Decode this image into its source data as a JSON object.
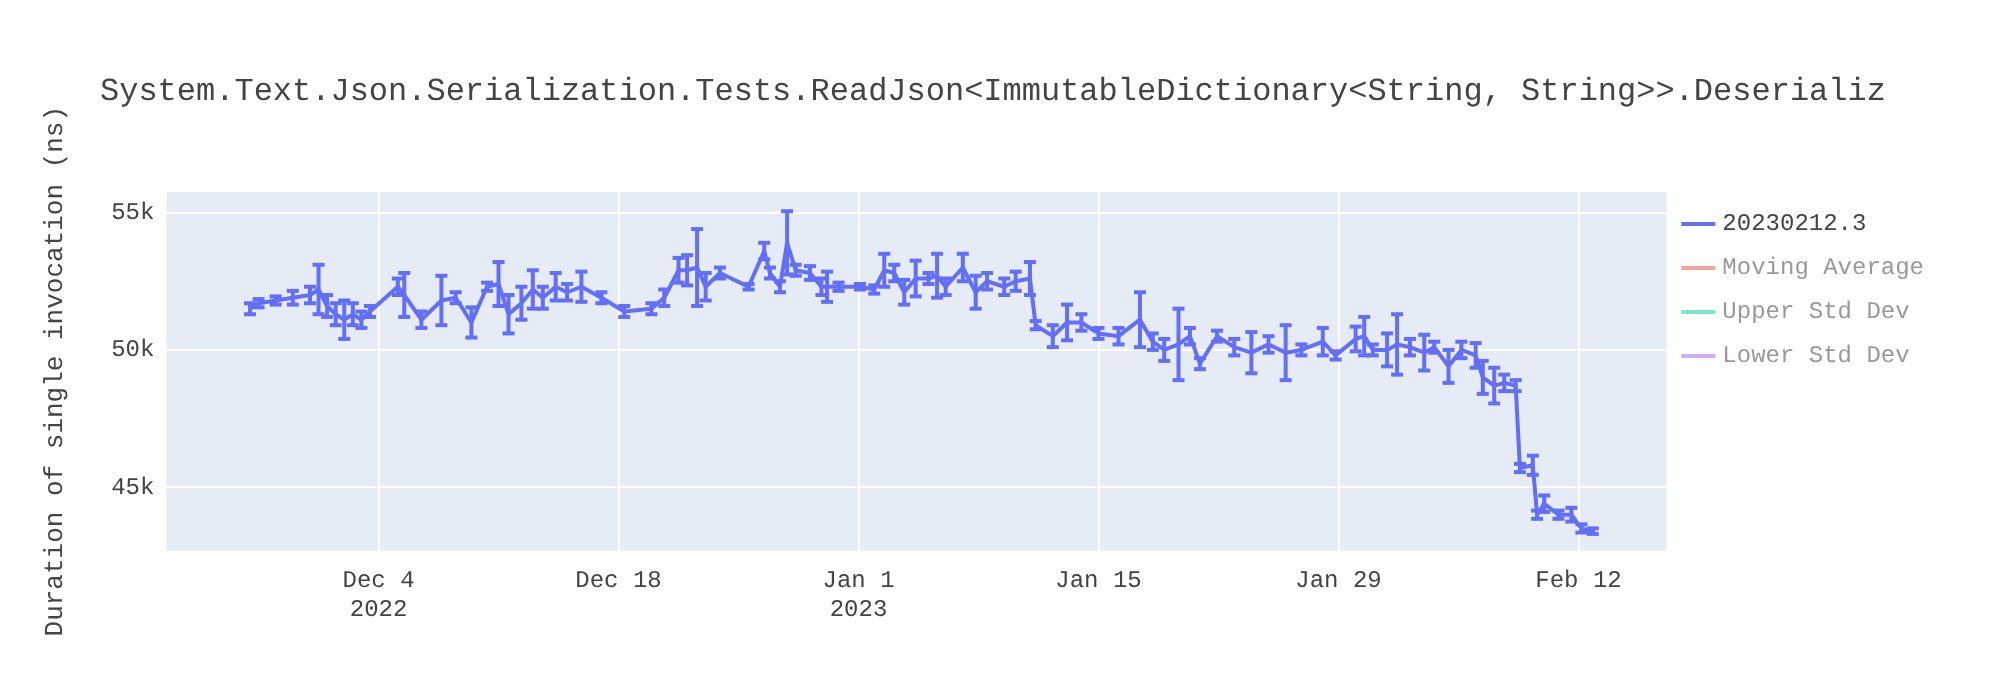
{
  "chart_data": {
    "type": "line",
    "title": "System.Text.Json.Serialization.Tests.ReadJson<ImmutableDictionary<String, String>>.Deserializ",
    "ylabel": "Duration of single invocation (ns)",
    "xlim": [
      "2022-11-21T15:00",
      "2023-02-17T03:00"
    ],
    "xticks": [
      {
        "value": "2022-12-04",
        "label": "Dec 4\n2022"
      },
      {
        "value": "2022-12-18",
        "label": "Dec 18"
      },
      {
        "value": "2023-01-01",
        "label": "Jan 1\n2023"
      },
      {
        "value": "2023-01-15",
        "label": "Jan 15"
      },
      {
        "value": "2023-01-29",
        "label": "Jan 29"
      },
      {
        "value": "2023-02-12",
        "label": "Feb 12"
      }
    ],
    "ylim": [
      42700,
      55750
    ],
    "yticks": [
      {
        "value": 45000,
        "label": "45k"
      },
      {
        "value": 50000,
        "label": "50k"
      },
      {
        "value": 55000,
        "label": "55k"
      }
    ],
    "grid": true,
    "legend": "top right",
    "marker": "none",
    "line_style": "solid",
    "series": [
      {
        "name": "20230212.3",
        "color": "#636efa",
        "x": [
          "2022-11-26T12:00",
          "2022-11-27T00:00",
          "2022-11-28T00:00",
          "2022-11-29T00:00",
          "2022-11-30T00:00",
          "2022-11-30T12:00",
          "2022-12-01T00:00",
          "2022-12-01T12:00",
          "2022-12-02T00:00",
          "2022-12-02T12:00",
          "2022-12-03T00:00",
          "2022-12-03T12:00",
          "2022-12-05T03:00",
          "2022-12-05T12:00",
          "2022-12-06T12:00",
          "2022-12-07T16:00",
          "2022-12-08T12:00",
          "2022-12-09T10:00",
          "2022-12-10T08:00",
          "2022-12-11T00:00",
          "2022-12-11T14:00",
          "2022-12-12T08:00",
          "2022-12-13T00:00",
          "2022-12-13T14:00",
          "2022-12-14T08:00",
          "2022-12-15T00:00",
          "2022-12-15T20:00",
          "2022-12-17T00:00",
          "2022-12-18T08:00",
          "2022-12-19T22:00",
          "2022-12-20T16:00",
          "2022-12-21T12:00",
          "2022-12-22T00:00",
          "2022-12-22T14:00",
          "2022-12-23T02:00",
          "2022-12-23T22:00",
          "2022-12-25T14:00",
          "2022-12-26T12:00",
          "2022-12-26T20:00",
          "2022-12-27T10:00",
          "2022-12-27T20:00",
          "2022-12-28T08:00",
          "2022-12-29T04:00",
          "2022-12-29T20:00",
          "2022-12-30T04:00",
          "2022-12-30T20:00",
          "2023-01-01T02:00",
          "2023-01-01T22:00",
          "2023-01-02T12:00",
          "2023-01-03T02:00",
          "2023-01-03T16:00",
          "2023-01-04T08:00",
          "2023-01-05T02:00",
          "2023-01-05T14:00",
          "2023-01-06T02:00",
          "2023-01-07T02:00",
          "2023-01-07T20:00",
          "2023-01-08T12:00",
          "2023-01-09T12:00",
          "2023-01-10T04:00",
          "2023-01-11T00:00",
          "2023-01-11T08:00",
          "2023-01-12T08:00",
          "2023-01-13T04:00",
          "2023-01-14T00:00",
          "2023-01-15T00:00",
          "2023-01-16T04:00",
          "2023-01-17T10:00",
          "2023-01-18T04:00",
          "2023-01-18T20:00",
          "2023-01-19T16:00",
          "2023-01-20T08:00",
          "2023-01-20T22:00",
          "2023-01-21T22:00",
          "2023-01-22T22:00",
          "2023-01-23T22:00",
          "2023-01-24T22:00",
          "2023-01-25T22:00",
          "2023-01-26T20:00",
          "2023-01-28T02:00",
          "2023-01-28T20:00",
          "2023-01-30T00:00",
          "2023-01-30T12:00",
          "2023-01-31T00:00",
          "2023-01-31T20:00",
          "2023-02-01T10:00",
          "2023-02-02T04:00",
          "2023-02-03T00:00",
          "2023-02-03T14:00",
          "2023-02-04T10:00",
          "2023-02-05T04:00",
          "2023-02-06T00:00",
          "2023-02-06T10:00",
          "2023-02-07T02:00",
          "2023-02-07T16:00",
          "2023-02-08T08:00",
          "2023-02-08T14:00",
          "2023-02-09T08:00",
          "2023-02-09T14:00",
          "2023-02-10T00:00",
          "2023-02-10T20:00",
          "2023-02-11T14:00",
          "2023-02-12T04:00",
          "2023-02-12T20:00"
        ],
        "values": [
          51500,
          51700,
          51800,
          51900,
          52000,
          52200,
          51600,
          51300,
          51100,
          51300,
          51100,
          51400,
          52300,
          52000,
          51100,
          51800,
          51900,
          51000,
          52300,
          52400,
          51300,
          51700,
          52200,
          51900,
          52300,
          52100,
          52300,
          51900,
          51400,
          51500,
          51900,
          52900,
          52900,
          53000,
          52300,
          52800,
          52300,
          53600,
          52800,
          52300,
          53900,
          52900,
          52800,
          52300,
          52300,
          52300,
          52300,
          52200,
          52900,
          52800,
          52100,
          52600,
          52600,
          52700,
          52300,
          53000,
          52100,
          52500,
          52300,
          52500,
          52600,
          50900,
          50500,
          51000,
          51000,
          50600,
          50500,
          51100,
          50300,
          50000,
          50200,
          50500,
          49500,
          50500,
          50100,
          49900,
          50200,
          49900,
          50000,
          50300,
          49800,
          50400,
          50500,
          50000,
          50000,
          50200,
          50100,
          49900,
          50100,
          49400,
          50000,
          49800,
          49000,
          48700,
          48800,
          48700,
          45700,
          45800,
          44000,
          44400,
          44000,
          44000,
          43500,
          43400
        ],
        "errors": [
          200,
          150,
          150,
          250,
          300,
          900,
          400,
          400,
          700,
          400,
          300,
          200,
          300,
          800,
          300,
          900,
          200,
          550,
          150,
          800,
          700,
          600,
          700,
          400,
          500,
          300,
          550,
          200,
          200,
          200,
          300,
          450,
          550,
          1400,
          500,
          200,
          100,
          300,
          200,
          200,
          1150,
          200,
          250,
          300,
          550,
          150,
          100,
          150,
          600,
          300,
          450,
          650,
          200,
          800,
          300,
          500,
          600,
          300,
          300,
          350,
          600,
          150,
          400,
          650,
          300,
          200,
          300,
          1000,
          300,
          400,
          1300,
          300,
          200,
          200,
          300,
          750,
          300,
          1000,
          200,
          500,
          150,
          450,
          700,
          200,
          600,
          1100,
          300,
          650,
          200,
          600,
          300,
          450,
          600,
          650,
          300,
          200,
          150,
          350,
          150,
          300,
          150,
          250,
          150,
          100
        ]
      },
      {
        "name": "Moving Average",
        "color": "#ef553b"
      },
      {
        "name": "Upper Std Dev",
        "color": "#00cc96"
      },
      {
        "name": "Lower Std Dev",
        "color": "#ab63fa"
      }
    ]
  }
}
